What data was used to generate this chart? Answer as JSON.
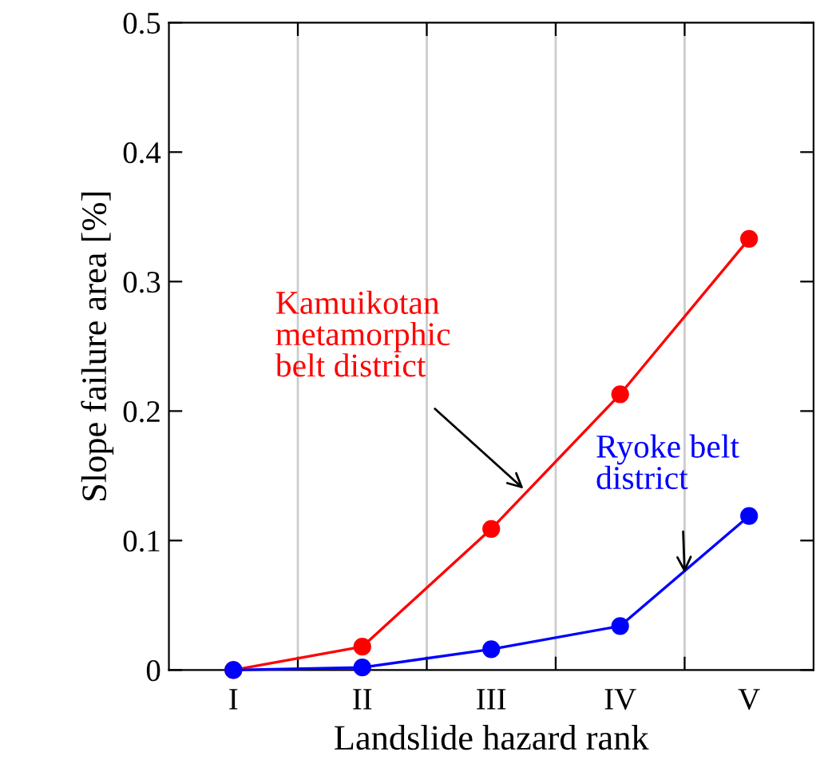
{
  "chart_data": {
    "type": "line",
    "xlabel": "Landslide hazard rank",
    "ylabel": "Slope failure area [%]",
    "categories": [
      "I",
      "II",
      "III",
      "IV",
      "V"
    ],
    "series": [
      {
        "name": "Kamuikotan\nmetamorphic\nbelt district",
        "color": "#ff0000",
        "values": [
          0,
          0.018,
          0.109,
          0.213,
          0.333
        ]
      },
      {
        "name": "Ryoke belt\ndistrict",
        "color": "#0000ff",
        "values": [
          0,
          0.002,
          0.016,
          0.034,
          0.119
        ]
      }
    ],
    "ylim": [
      0,
      0.5
    ],
    "yticks": [
      0,
      0.1,
      0.2,
      0.3,
      0.4,
      0.5
    ],
    "grid": "x",
    "legend": false,
    "marker": "circle",
    "line_style": "solid"
  }
}
